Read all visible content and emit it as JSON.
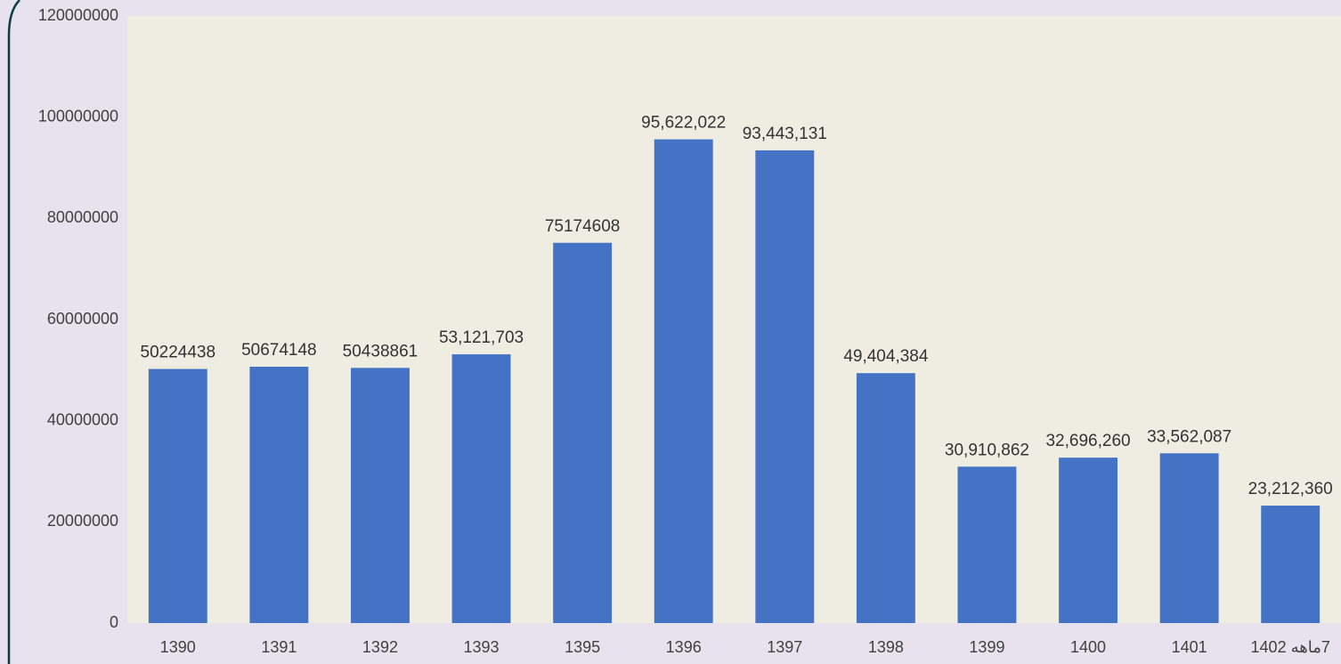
{
  "chart_data": {
    "type": "bar",
    "categories": [
      "1390",
      "1391",
      "1392",
      "1393",
      "1395",
      "1396",
      "1397",
      "1398",
      "1399",
      "1400",
      "1401",
      "7ماهه 1402"
    ],
    "values": [
      50224438,
      50674148,
      50438861,
      53121703,
      75174608,
      95622022,
      93443131,
      49404384,
      30910862,
      32696260,
      33562087,
      23212360
    ],
    "value_labels": [
      "50224438",
      "50674148",
      "50438861",
      "53,121,703",
      "75174608",
      "95,622,022",
      "93,443,131",
      "49,404,384",
      "30,910,862",
      "32,696,260",
      "33,562,087",
      "23,212,360"
    ],
    "color": "#4472c4",
    "ylim": [
      0,
      120000000
    ],
    "yticks": [
      0,
      20000000,
      40000000,
      60000000,
      80000000,
      100000000,
      120000000
    ],
    "grid": false
  }
}
